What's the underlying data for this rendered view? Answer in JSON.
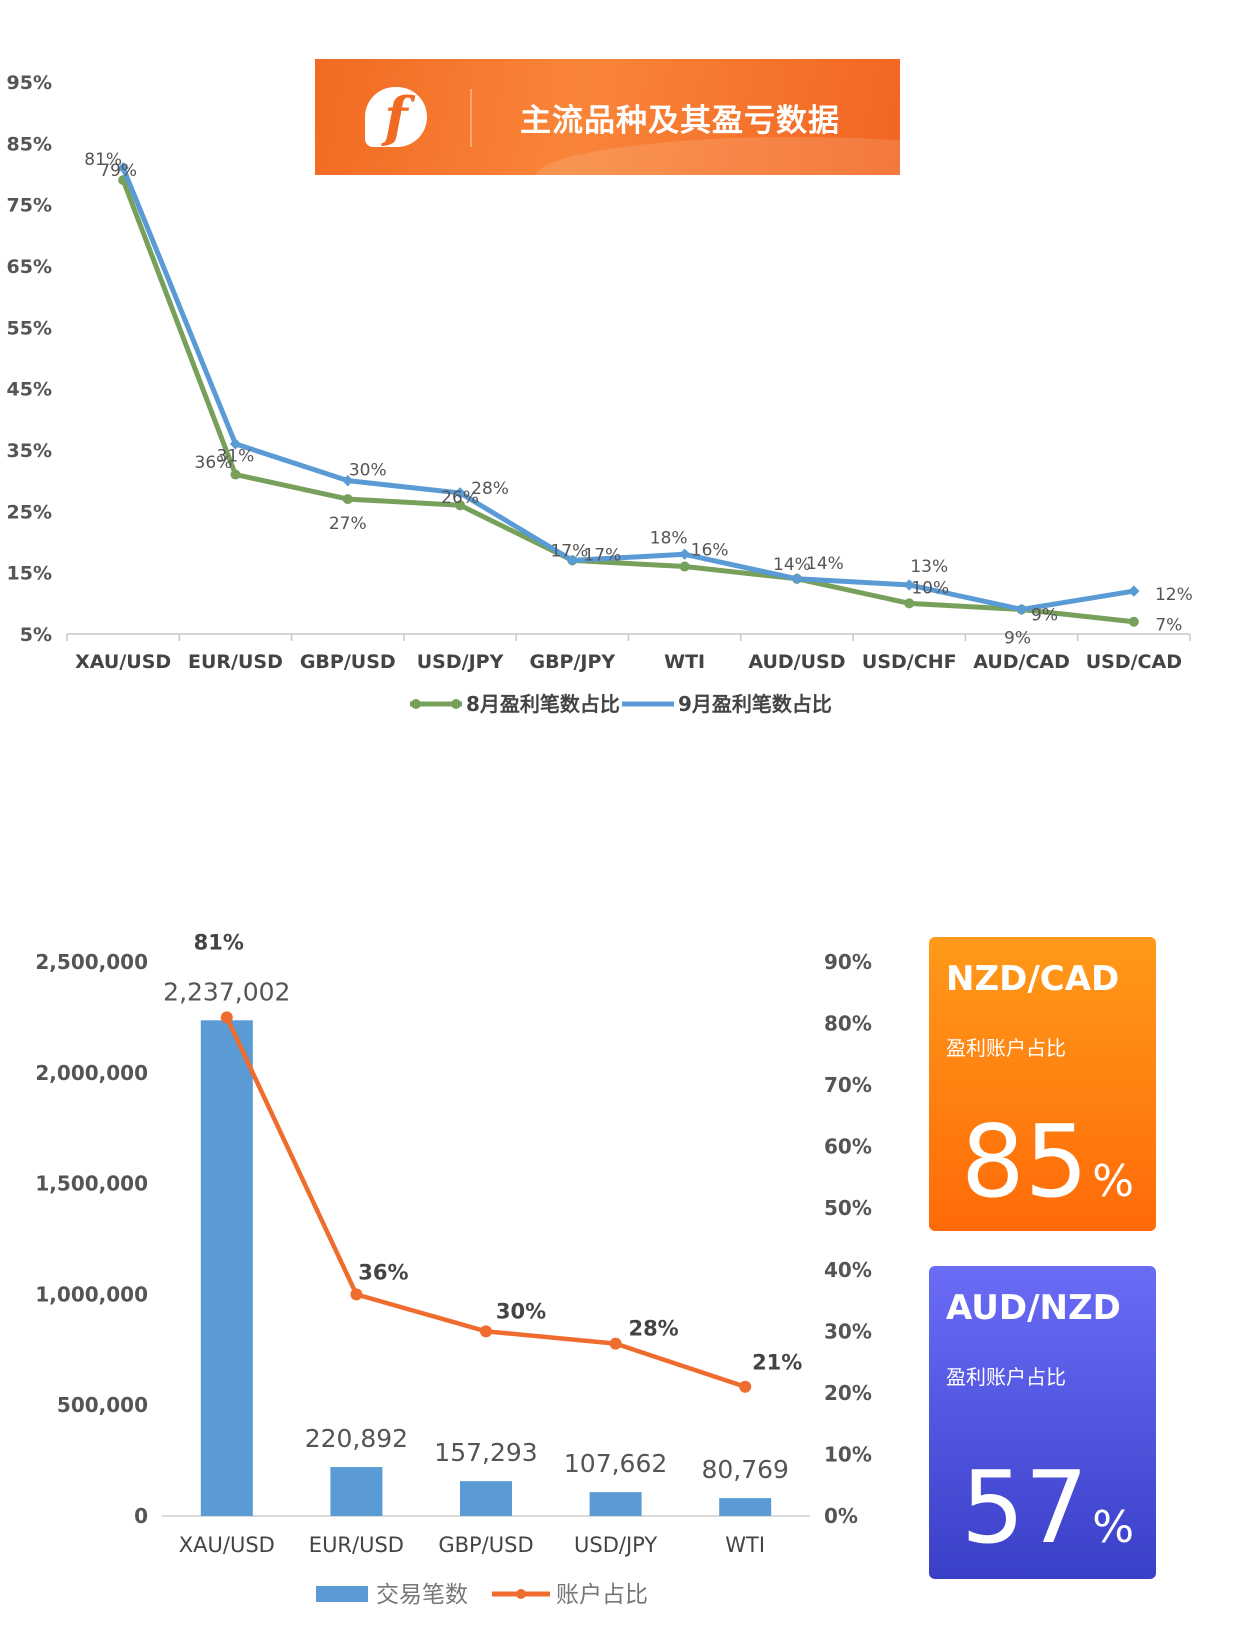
{
  "banner": {
    "title": "主流品种及其盈亏数据",
    "logo_icon": "brand-logo-icon"
  },
  "chart_data": [
    {
      "type": "line",
      "categories": [
        "XAU/USD",
        "EUR/USD",
        "GBP/USD",
        "USD/JPY",
        "GBP/JPY",
        "WTI",
        "AUD/USD",
        "USD/CHF",
        "AUD/CAD",
        "USD/CAD"
      ],
      "series": [
        {
          "name": "8月盈利笔数占比",
          "color": "#77a05a",
          "values": [
            79,
            31,
            27,
            26,
            17,
            16,
            14,
            10,
            9,
            7
          ],
          "labels": [
            "79%",
            "31%",
            "27%",
            "26%",
            "17%",
            "16%",
            "14%",
            "10%",
            "9%",
            "7%"
          ]
        },
        {
          "name": "9月盈利笔数占比",
          "color": "#5b9bd5",
          "values": [
            81,
            36,
            30,
            28,
            17,
            18,
            14,
            13,
            9,
            12
          ],
          "labels": [
            "81%",
            "36%",
            "30%",
            "28%",
            "17%",
            "18%",
            "14%",
            "13%",
            "9%",
            "12%"
          ]
        }
      ],
      "y_ticks": [
        "5%",
        "15%",
        "25%",
        "35%",
        "45%",
        "55%",
        "65%",
        "75%",
        "85%",
        "95%"
      ],
      "ylim": [
        5,
        95
      ],
      "legend": "bottom"
    },
    {
      "type": "bar",
      "categories": [
        "XAU/USD",
        "EUR/USD",
        "GBP/USD",
        "USD/JPY",
        "WTI"
      ],
      "series": [
        {
          "name": "交易笔数",
          "type": "bar",
          "color": "#5b9bd5",
          "values": [
            2237002,
            220892,
            157293,
            107662,
            80769
          ],
          "labels": [
            "2,237,002",
            "220,892",
            "157,293",
            "107,662",
            "80,769"
          ]
        },
        {
          "name": "账户占比",
          "type": "line",
          "color": "#ef6c2f",
          "values": [
            81,
            36,
            30,
            28,
            21
          ],
          "labels": [
            "81%",
            "36%",
            "30%",
            "28%",
            "21%"
          ]
        }
      ],
      "y_ticks": [
        "0",
        "500,000",
        "1,000,000",
        "1,500,000",
        "2,000,000",
        "2,500,000"
      ],
      "ylim": [
        0,
        2500000
      ],
      "y2_ticks": [
        "0%",
        "10%",
        "20%",
        "30%",
        "40%",
        "50%",
        "60%",
        "70%",
        "80%",
        "90%"
      ],
      "y2lim": [
        0,
        90
      ],
      "legend": "bottom"
    }
  ],
  "cards": [
    {
      "pair": "NZD/CAD",
      "label": "盈利账户占比",
      "value": "85",
      "unit": "%"
    },
    {
      "pair": "AUD/NZD",
      "label": "盈利账户占比",
      "value": "57",
      "unit": "%"
    }
  ]
}
